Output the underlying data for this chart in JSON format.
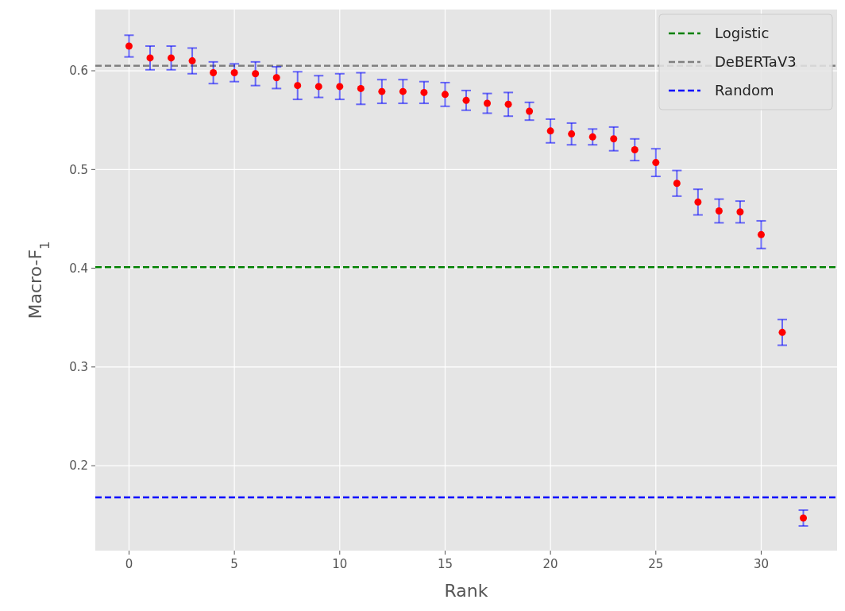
{
  "chart_data": {
    "type": "scatter",
    "xlabel": "Rank",
    "ylabel": "Macro-F$_{1}$",
    "xlim": [
      -1.6,
      33.6
    ],
    "xticks": [
      0,
      5,
      10,
      15,
      20,
      25,
      30
    ],
    "ylim": [
      0.114,
      0.662
    ],
    "yticks": [
      0.2,
      0.3,
      0.4,
      0.5,
      0.6
    ],
    "grid": true,
    "legend": "top right",
    "marker": "circle",
    "series": [
      {
        "color": "#ff0000",
        "x": [
          0,
          1,
          2,
          3,
          4,
          5,
          6,
          7,
          8,
          9,
          10,
          11,
          12,
          13,
          14,
          15,
          16,
          17,
          18,
          19,
          20,
          21,
          22,
          23,
          24,
          25,
          26,
          27,
          28,
          29,
          30,
          31,
          32
        ],
        "values": [
          0.625,
          0.613,
          0.613,
          0.61,
          0.598,
          0.598,
          0.597,
          0.593,
          0.585,
          0.584,
          0.584,
          0.582,
          0.579,
          0.579,
          0.578,
          0.576,
          0.57,
          0.567,
          0.566,
          0.559,
          0.539,
          0.536,
          0.533,
          0.531,
          0.52,
          0.507,
          0.486,
          0.467,
          0.458,
          0.457,
          0.434,
          0.335,
          0.147
        ],
        "errors": [
          0.011,
          0.012,
          0.012,
          0.013,
          0.011,
          0.009,
          0.012,
          0.011,
          0.014,
          0.011,
          0.013,
          0.016,
          0.012,
          0.012,
          0.011,
          0.012,
          0.01,
          0.01,
          0.012,
          0.009,
          0.012,
          0.011,
          0.008,
          0.012,
          0.011,
          0.014,
          0.013,
          0.013,
          0.012,
          0.011,
          0.014,
          0.013,
          0.008
        ]
      }
    ],
    "ref_lines": [
      {
        "axis": "y",
        "value": 0.401,
        "label": "Logistic",
        "color": "#008000",
        "line_style": "dashed"
      },
      {
        "axis": "y",
        "value": 0.605,
        "label": "DeBERTaV3",
        "color": "#808080",
        "line_style": "dashed"
      },
      {
        "axis": "y",
        "value": 0.168,
        "label": "Random",
        "color": "#0000ff",
        "line_style": "dashed"
      }
    ]
  }
}
